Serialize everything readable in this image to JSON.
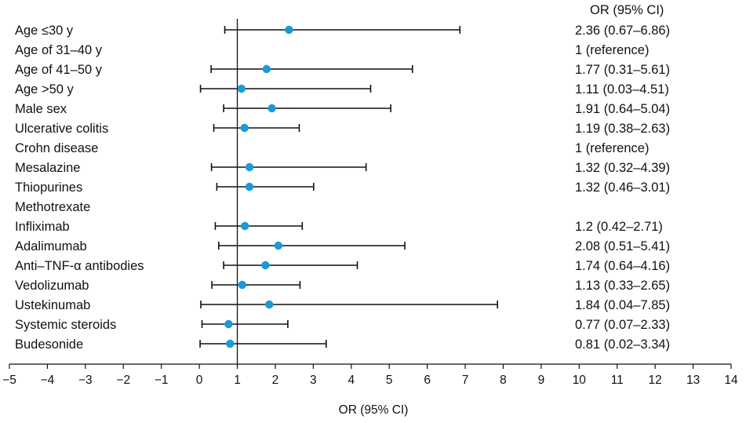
{
  "chart_data": {
    "type": "forest",
    "xlabel": "OR (95% CI)",
    "or_column_header": "OR (95% CI)",
    "xlim": [
      -5,
      14
    ],
    "xticks": [
      -5,
      -4,
      -3,
      -2,
      -1,
      0,
      1,
      2,
      3,
      4,
      5,
      6,
      7,
      8,
      9,
      10,
      11,
      12,
      13,
      14
    ],
    "reference_line": 1,
    "point_color": "#1a9ad6",
    "rows": [
      {
        "label": "Age ≤30 y",
        "or": 2.36,
        "lo": 0.67,
        "hi": 6.86,
        "text": "2.36 (0.67–6.86)"
      },
      {
        "label": "Age of 31–40 y",
        "or": null,
        "lo": null,
        "hi": null,
        "text": "1 (reference)"
      },
      {
        "label": "Age of 41–50 y",
        "or": 1.77,
        "lo": 0.31,
        "hi": 5.61,
        "text": "1.77 (0.31–5.61)"
      },
      {
        "label": "Age >50 y",
        "or": 1.11,
        "lo": 0.03,
        "hi": 4.51,
        "text": "1.11 (0.03–4.51)"
      },
      {
        "label": "Male sex",
        "or": 1.91,
        "lo": 0.64,
        "hi": 5.04,
        "text": "1.91 (0.64–5.04)"
      },
      {
        "label": "Ulcerative colitis",
        "or": 1.19,
        "lo": 0.38,
        "hi": 2.63,
        "text": "1.19 (0.38–2.63)"
      },
      {
        "label": "Crohn disease",
        "or": null,
        "lo": null,
        "hi": null,
        "text": "1 (reference)"
      },
      {
        "label": "Mesalazine",
        "or": 1.32,
        "lo": 0.32,
        "hi": 4.39,
        "text": "1.32 (0.32–4.39)"
      },
      {
        "label": "Thiopurines",
        "or": 1.32,
        "lo": 0.46,
        "hi": 3.01,
        "text": "1.32 (0.46–3.01)"
      },
      {
        "label": "Methotrexate",
        "or": null,
        "lo": null,
        "hi": null,
        "text": ""
      },
      {
        "label": "Infliximab",
        "or": 1.2,
        "lo": 0.42,
        "hi": 2.71,
        "text": "1.2 (0.42–2.71)"
      },
      {
        "label": "Adalimumab",
        "or": 2.08,
        "lo": 0.51,
        "hi": 5.41,
        "text": "2.08 (0.51–5.41)"
      },
      {
        "label": "Anti–TNF-α antibodies",
        "or": 1.74,
        "lo": 0.64,
        "hi": 4.16,
        "text": "1.74 (0.64–4.16)"
      },
      {
        "label": "Vedolizumab",
        "or": 1.13,
        "lo": 0.33,
        "hi": 2.65,
        "text": "1.13 (0.33–2.65)"
      },
      {
        "label": "Ustekinumab",
        "or": 1.84,
        "lo": 0.04,
        "hi": 7.85,
        "text": "1.84 (0.04–7.85)"
      },
      {
        "label": "Systemic steroids",
        "or": 0.77,
        "lo": 0.07,
        "hi": 2.33,
        "text": "0.77 (0.07–2.33)"
      },
      {
        "label": "Budesonide",
        "or": 0.81,
        "lo": 0.02,
        "hi": 3.34,
        "text": "0.81 (0.02–3.34)"
      }
    ]
  }
}
